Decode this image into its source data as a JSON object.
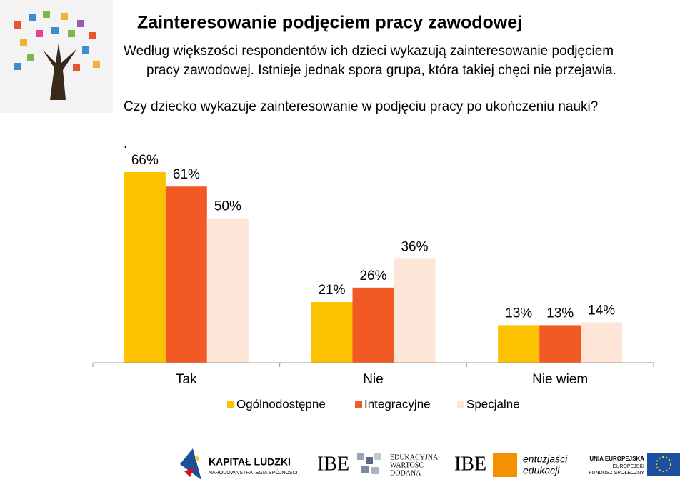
{
  "chart_data": {
    "type": "bar",
    "title": "Zainteresowanie podjęciem pracy zawodowej",
    "subtitle_lines": [
      "Według większości respondentów ich dzieci wykazują zainteresowanie podjęciem",
      "pracy zawodowej. Istnieje jednak spora grupa, która takiej chęci nie przejawia."
    ],
    "question": "Czy dziecko wykazuje zainteresowanie w podjęciu pracy po ukończeniu nauki?",
    "note": ".",
    "categories": [
      "Tak",
      "Nie",
      "Nie wiem"
    ],
    "series": [
      {
        "name": "Ogólnodostępne",
        "color": "#fcc200",
        "values": [
          66,
          21,
          13
        ],
        "value_labels": [
          "66%",
          "21%",
          "13%"
        ]
      },
      {
        "name": "Integracyjne",
        "color": "#f15a24",
        "values": [
          61,
          26,
          13
        ],
        "value_labels": [
          "61%",
          "26%",
          "13%"
        ]
      },
      {
        "name": "Specjalne",
        "color": "#fde5d8",
        "values": [
          50,
          36,
          14
        ],
        "value_labels": [
          "50%",
          "36%",
          "14%"
        ]
      }
    ],
    "legend": "bottom"
  },
  "logos": {
    "kl_title": "KAPITAŁ LUDZKI",
    "kl_sub": "NARODOWA STRATEGIA SPÓJNOŚCI",
    "ibe1": "IBE",
    "ewd": [
      "EDUKACYJNA",
      "WARTOŚĆ",
      "DODANA"
    ],
    "ibe2": "IBE",
    "ee": [
      "entuzjaści",
      "edukacji"
    ],
    "eu": [
      "UNIA EUROPEJSKA",
      "EUROPEJSKI",
      "FUNDUSZ SPOŁECZNY"
    ]
  }
}
